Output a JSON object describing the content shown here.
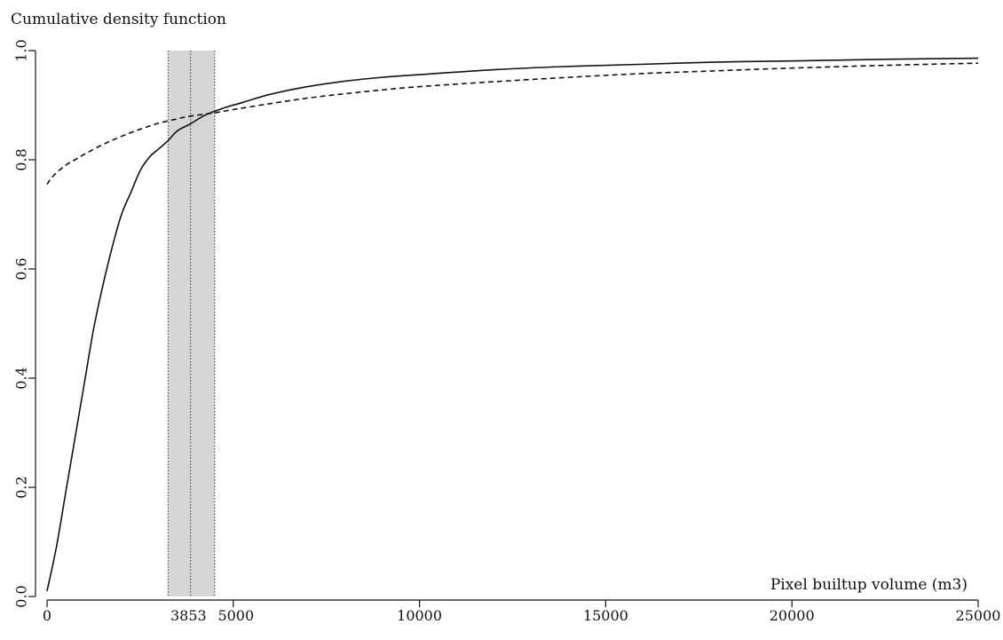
{
  "chart_data": {
    "type": "line",
    "title": "Cumulative density function",
    "xlabel": "Pixel builtup volume (m3)",
    "ylabel": "",
    "xlim": [
      0,
      25000
    ],
    "ylim": [
      0,
      1
    ],
    "x_ticks": [
      0,
      5000,
      10000,
      15000,
      20000,
      25000
    ],
    "y_ticks": [
      0.0,
      0.2,
      0.4,
      0.6,
      0.8,
      1.0
    ],
    "x_ticks_labels": [
      "0",
      "5000",
      "10000",
      "15000",
      "20000",
      "25000"
    ],
    "y_ticks_labels": [
      "0.0",
      "0.2",
      "0.4",
      "0.6",
      "0.8",
      "1.0"
    ],
    "highlight_band": {
      "x_start": 3250,
      "x_end": 4500,
      "color": "#d6d6d6"
    },
    "reference_line": {
      "x": 3853,
      "label": "3853"
    },
    "grid": false,
    "legend": "none",
    "series": [
      {
        "style": "solid",
        "color": "#111111",
        "points": [
          [
            0,
            0.01
          ],
          [
            250,
            0.09
          ],
          [
            500,
            0.19
          ],
          [
            750,
            0.29
          ],
          [
            1000,
            0.39
          ],
          [
            1250,
            0.49
          ],
          [
            1500,
            0.57
          ],
          [
            1750,
            0.64
          ],
          [
            2000,
            0.7
          ],
          [
            2250,
            0.74
          ],
          [
            2500,
            0.78
          ],
          [
            2750,
            0.805
          ],
          [
            3000,
            0.82
          ],
          [
            3250,
            0.835
          ],
          [
            3500,
            0.853
          ],
          [
            3853,
            0.866
          ],
          [
            4250,
            0.882
          ],
          [
            4750,
            0.895
          ],
          [
            5250,
            0.905
          ],
          [
            6000,
            0.92
          ],
          [
            7000,
            0.934
          ],
          [
            8000,
            0.944
          ],
          [
            9000,
            0.951
          ],
          [
            10000,
            0.956
          ],
          [
            12000,
            0.965
          ],
          [
            14000,
            0.971
          ],
          [
            16000,
            0.975
          ],
          [
            18000,
            0.979
          ],
          [
            20000,
            0.981
          ],
          [
            22500,
            0.984
          ],
          [
            25000,
            0.986
          ]
        ]
      },
      {
        "style": "dashed",
        "color": "#111111",
        "points": [
          [
            0,
            0.755
          ],
          [
            100,
            0.765
          ],
          [
            250,
            0.776
          ],
          [
            500,
            0.79
          ],
          [
            750,
            0.8
          ],
          [
            1000,
            0.81
          ],
          [
            1500,
            0.828
          ],
          [
            2000,
            0.843
          ],
          [
            2500,
            0.856
          ],
          [
            3000,
            0.867
          ],
          [
            3500,
            0.875
          ],
          [
            3853,
            0.88
          ],
          [
            4500,
            0.886
          ],
          [
            5000,
            0.892
          ],
          [
            6000,
            0.903
          ],
          [
            7000,
            0.913
          ],
          [
            8000,
            0.921
          ],
          [
            9000,
            0.928
          ],
          [
            10000,
            0.934
          ],
          [
            12000,
            0.943
          ],
          [
            14000,
            0.951
          ],
          [
            16000,
            0.958
          ],
          [
            18000,
            0.963
          ],
          [
            20000,
            0.968
          ],
          [
            22500,
            0.973
          ],
          [
            25000,
            0.977
          ]
        ]
      }
    ]
  }
}
